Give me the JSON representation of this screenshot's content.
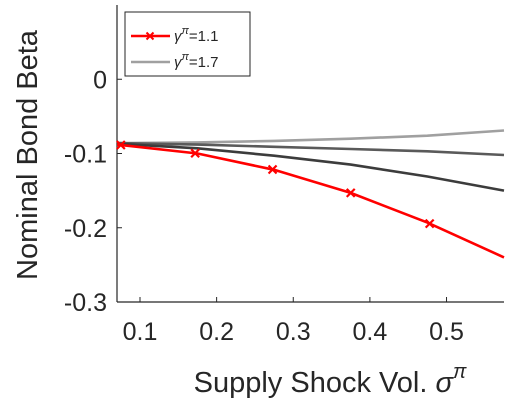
{
  "chart_data": {
    "type": "line",
    "xlabel_text": "Supply Shock Vol. ",
    "xlabel_symbol": "σ",
    "xlabel_sup": "π",
    "ylabel": "Nominal Bond Beta",
    "xlim": [
      0.07,
      0.575
    ],
    "ylim": [
      -0.3,
      0.1
    ],
    "xticks": [
      0.1,
      0.2,
      0.3,
      0.4,
      0.5
    ],
    "xtick_labels": [
      "0.1",
      "0.2",
      "0.3",
      "0.4",
      "0.5"
    ],
    "yticks": [
      0,
      -0.1,
      -0.2,
      -0.3
    ],
    "ytick_labels": [
      "0",
      "-0.1",
      "-0.2",
      "-0.3"
    ],
    "grid": false,
    "legend_position": "top-left",
    "series": [
      {
        "name_symbol": "γ",
        "name_sup": "π",
        "name_rest": "=1.1",
        "color": "#ff0000",
        "marker": "x",
        "x": [
          0.07,
          0.175,
          0.275,
          0.375,
          0.475,
          0.575
        ],
        "y": [
          -0.088,
          -0.1,
          -0.122,
          -0.153,
          -0.193,
          -0.24
        ],
        "marker_x": [
          0.075,
          0.172,
          0.273,
          0.375,
          0.478
        ]
      },
      {
        "color": "#3c3c3c",
        "x": [
          0.07,
          0.175,
          0.275,
          0.375,
          0.475,
          0.575
        ],
        "y": [
          -0.087,
          -0.093,
          -0.103,
          -0.115,
          -0.131,
          -0.15
        ]
      },
      {
        "color": "#5a5a5a",
        "x": [
          0.07,
          0.175,
          0.275,
          0.375,
          0.475,
          0.575
        ],
        "y": [
          -0.086,
          -0.088,
          -0.091,
          -0.094,
          -0.097,
          -0.102
        ]
      },
      {
        "name_symbol": "γ",
        "name_sup": "π",
        "name_rest": "=1.7",
        "color": "#a0a0a0",
        "x": [
          0.07,
          0.175,
          0.275,
          0.375,
          0.475,
          0.575
        ],
        "y": [
          -0.086,
          -0.085,
          -0.083,
          -0.08,
          -0.076,
          -0.069
        ]
      }
    ]
  }
}
